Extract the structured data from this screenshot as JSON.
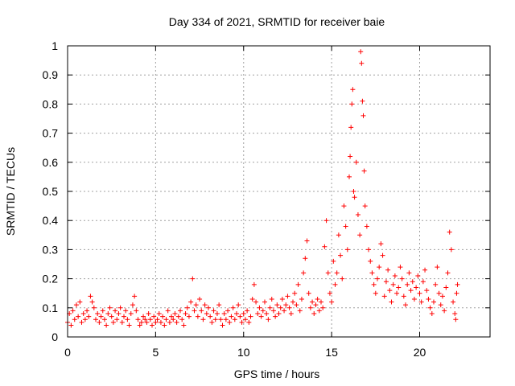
{
  "chart_data": {
    "type": "scatter",
    "title": "Day 334 of 2021, SRMTID for receiver baie",
    "xlabel": "GPS time / hours",
    "ylabel": "SRMTID / TECUs",
    "xlim": [
      0,
      24
    ],
    "ylim": [
      0,
      1
    ],
    "x_ticks": [
      0,
      5,
      10,
      15,
      20
    ],
    "x_tick_labels": [
      "0",
      "5",
      "10",
      "15",
      "20"
    ],
    "y_ticks": [
      0,
      0.1,
      0.2,
      0.3,
      0.4,
      0.5,
      0.6,
      0.7,
      0.8,
      0.9,
      1
    ],
    "y_tick_labels": [
      "0",
      "0.1",
      "0.2",
      "0.3",
      "0.4",
      "0.5",
      "0.6",
      "0.7",
      "0.8",
      "0.9",
      "1"
    ],
    "grid": true,
    "marker": "+",
    "color": "#ff0000",
    "series": [
      {
        "name": "SRMTID",
        "points": [
          [
            0.0,
            0.05
          ],
          [
            0.1,
            0.08
          ],
          [
            0.2,
            0.04
          ],
          [
            0.3,
            0.09
          ],
          [
            0.4,
            0.06
          ],
          [
            0.5,
            0.11
          ],
          [
            0.6,
            0.07
          ],
          [
            0.7,
            0.12
          ],
          [
            0.8,
            0.05
          ],
          [
            0.9,
            0.08
          ],
          [
            1.0,
            0.06
          ],
          [
            1.1,
            0.09
          ],
          [
            1.2,
            0.07
          ],
          [
            1.3,
            0.14
          ],
          [
            1.4,
            0.12
          ],
          [
            1.5,
            0.1
          ],
          [
            1.6,
            0.06
          ],
          [
            1.7,
            0.08
          ],
          [
            1.8,
            0.05
          ],
          [
            1.9,
            0.07
          ],
          [
            2.0,
            0.09
          ],
          [
            2.1,
            0.06
          ],
          [
            2.2,
            0.04
          ],
          [
            2.3,
            0.08
          ],
          [
            2.4,
            0.1
          ],
          [
            2.5,
            0.07
          ],
          [
            2.6,
            0.05
          ],
          [
            2.7,
            0.09
          ],
          [
            2.8,
            0.06
          ],
          [
            2.9,
            0.08
          ],
          [
            3.0,
            0.1
          ],
          [
            3.1,
            0.05
          ],
          [
            3.2,
            0.07
          ],
          [
            3.3,
            0.09
          ],
          [
            3.4,
            0.06
          ],
          [
            3.5,
            0.04
          ],
          [
            3.6,
            0.08
          ],
          [
            3.7,
            0.11
          ],
          [
            3.8,
            0.14
          ],
          [
            3.9,
            0.09
          ],
          [
            4.0,
            0.06
          ],
          [
            4.1,
            0.04
          ],
          [
            4.2,
            0.05
          ],
          [
            4.3,
            0.07
          ],
          [
            4.4,
            0.06
          ],
          [
            4.5,
            0.05
          ],
          [
            4.6,
            0.08
          ],
          [
            4.7,
            0.06
          ],
          [
            4.8,
            0.04
          ],
          [
            4.9,
            0.07
          ],
          [
            5.0,
            0.05
          ],
          [
            5.1,
            0.06
          ],
          [
            5.2,
            0.08
          ],
          [
            5.3,
            0.05
          ],
          [
            5.4,
            0.07
          ],
          [
            5.5,
            0.04
          ],
          [
            5.6,
            0.06
          ],
          [
            5.7,
            0.09
          ],
          [
            5.8,
            0.05
          ],
          [
            5.9,
            0.07
          ],
          [
            6.0,
            0.06
          ],
          [
            6.1,
            0.08
          ],
          [
            6.2,
            0.05
          ],
          [
            6.3,
            0.07
          ],
          [
            6.4,
            0.09
          ],
          [
            6.5,
            0.06
          ],
          [
            6.6,
            0.04
          ],
          [
            6.7,
            0.08
          ],
          [
            6.8,
            0.1
          ],
          [
            6.9,
            0.07
          ],
          [
            7.0,
            0.12
          ],
          [
            7.1,
            0.2
          ],
          [
            7.2,
            0.09
          ],
          [
            7.3,
            0.11
          ],
          [
            7.4,
            0.07
          ],
          [
            7.5,
            0.13
          ],
          [
            7.6,
            0.09
          ],
          [
            7.7,
            0.06
          ],
          [
            7.8,
            0.11
          ],
          [
            7.9,
            0.08
          ],
          [
            8.0,
            0.1
          ],
          [
            8.1,
            0.07
          ],
          [
            8.2,
            0.05
          ],
          [
            8.3,
            0.09
          ],
          [
            8.4,
            0.06
          ],
          [
            8.5,
            0.08
          ],
          [
            8.6,
            0.11
          ],
          [
            8.7,
            0.06
          ],
          [
            8.8,
            0.04
          ],
          [
            8.9,
            0.08
          ],
          [
            9.0,
            0.06
          ],
          [
            9.1,
            0.09
          ],
          [
            9.2,
            0.05
          ],
          [
            9.3,
            0.07
          ],
          [
            9.4,
            0.1
          ],
          [
            9.5,
            0.06
          ],
          [
            9.6,
            0.08
          ],
          [
            9.7,
            0.11
          ],
          [
            9.8,
            0.07
          ],
          [
            9.9,
            0.05
          ],
          [
            10.0,
            0.08
          ],
          [
            10.1,
            0.06
          ],
          [
            10.2,
            0.09
          ],
          [
            10.3,
            0.05
          ],
          [
            10.4,
            0.07
          ],
          [
            10.5,
            0.13
          ],
          [
            10.6,
            0.18
          ],
          [
            10.7,
            0.12
          ],
          [
            10.8,
            0.08
          ],
          [
            10.9,
            0.1
          ],
          [
            11.0,
            0.07
          ],
          [
            11.1,
            0.09
          ],
          [
            11.2,
            0.12
          ],
          [
            11.3,
            0.08
          ],
          [
            11.4,
            0.06
          ],
          [
            11.5,
            0.1
          ],
          [
            11.6,
            0.13
          ],
          [
            11.7,
            0.09
          ],
          [
            11.8,
            0.07
          ],
          [
            11.9,
            0.11
          ],
          [
            12.0,
            0.08
          ],
          [
            12.1,
            0.1
          ],
          [
            12.2,
            0.13
          ],
          [
            12.3,
            0.09
          ],
          [
            12.4,
            0.11
          ],
          [
            12.5,
            0.14
          ],
          [
            12.6,
            0.1
          ],
          [
            12.7,
            0.08
          ],
          [
            12.8,
            0.12
          ],
          [
            12.9,
            0.15
          ],
          [
            13.0,
            0.11
          ],
          [
            13.1,
            0.18
          ],
          [
            13.2,
            0.09
          ],
          [
            13.3,
            0.13
          ],
          [
            13.4,
            0.22
          ],
          [
            13.5,
            0.27
          ],
          [
            13.6,
            0.33
          ],
          [
            13.7,
            0.15
          ],
          [
            13.8,
            0.1
          ],
          [
            13.9,
            0.12
          ],
          [
            14.0,
            0.08
          ],
          [
            14.1,
            0.11
          ],
          [
            14.2,
            0.13
          ],
          [
            14.3,
            0.09
          ],
          [
            14.4,
            0.12
          ],
          [
            14.5,
            0.1
          ],
          [
            14.6,
            0.31
          ],
          [
            14.7,
            0.4
          ],
          [
            14.8,
            0.22
          ],
          [
            14.9,
            0.15
          ],
          [
            15.0,
            0.12
          ],
          [
            15.1,
            0.26
          ],
          [
            15.2,
            0.18
          ],
          [
            15.3,
            0.22
          ],
          [
            15.4,
            0.35
          ],
          [
            15.5,
            0.28
          ],
          [
            15.6,
            0.2
          ],
          [
            15.7,
            0.45
          ],
          [
            15.8,
            0.38
          ],
          [
            15.9,
            0.3
          ],
          [
            16.0,
            0.55
          ],
          [
            16.05,
            0.62
          ],
          [
            16.1,
            0.72
          ],
          [
            16.15,
            0.8
          ],
          [
            16.2,
            0.85
          ],
          [
            16.25,
            0.5
          ],
          [
            16.3,
            0.48
          ],
          [
            16.4,
            0.6
          ],
          [
            16.5,
            0.42
          ],
          [
            16.6,
            0.35
          ],
          [
            16.65,
            0.98
          ],
          [
            16.7,
            0.94
          ],
          [
            16.75,
            0.81
          ],
          [
            16.8,
            0.76
          ],
          [
            16.85,
            0.57
          ],
          [
            16.9,
            0.45
          ],
          [
            17.0,
            0.38
          ],
          [
            17.1,
            0.3
          ],
          [
            17.2,
            0.26
          ],
          [
            17.3,
            0.22
          ],
          [
            17.4,
            0.18
          ],
          [
            17.5,
            0.15
          ],
          [
            17.6,
            0.2
          ],
          [
            17.7,
            0.24
          ],
          [
            17.8,
            0.32
          ],
          [
            17.9,
            0.28
          ],
          [
            18.0,
            0.14
          ],
          [
            18.1,
            0.19
          ],
          [
            18.2,
            0.23
          ],
          [
            18.3,
            0.16
          ],
          [
            18.4,
            0.12
          ],
          [
            18.5,
            0.18
          ],
          [
            18.6,
            0.21
          ],
          [
            18.7,
            0.15
          ],
          [
            18.8,
            0.17
          ],
          [
            18.9,
            0.24
          ],
          [
            19.0,
            0.2
          ],
          [
            19.1,
            0.14
          ],
          [
            19.2,
            0.11
          ],
          [
            19.3,
            0.18
          ],
          [
            19.4,
            0.22
          ],
          [
            19.5,
            0.16
          ],
          [
            19.6,
            0.19
          ],
          [
            19.7,
            0.13
          ],
          [
            19.8,
            0.17
          ],
          [
            19.9,
            0.21
          ],
          [
            20.0,
            0.15
          ],
          [
            20.1,
            0.12
          ],
          [
            20.2,
            0.19
          ],
          [
            20.3,
            0.23
          ],
          [
            20.4,
            0.16
          ],
          [
            20.5,
            0.13
          ],
          [
            20.6,
            0.1
          ],
          [
            20.7,
            0.08
          ],
          [
            20.8,
            0.12
          ],
          [
            20.9,
            0.18
          ],
          [
            21.0,
            0.24
          ],
          [
            21.1,
            0.15
          ],
          [
            21.2,
            0.11
          ],
          [
            21.3,
            0.14
          ],
          [
            21.4,
            0.09
          ],
          [
            21.5,
            0.17
          ],
          [
            21.6,
            0.22
          ],
          [
            21.7,
            0.36
          ],
          [
            21.8,
            0.3
          ],
          [
            21.9,
            0.12
          ],
          [
            22.0,
            0.08
          ],
          [
            22.05,
            0.06
          ],
          [
            22.1,
            0.15
          ],
          [
            22.15,
            0.18
          ]
        ]
      }
    ]
  }
}
